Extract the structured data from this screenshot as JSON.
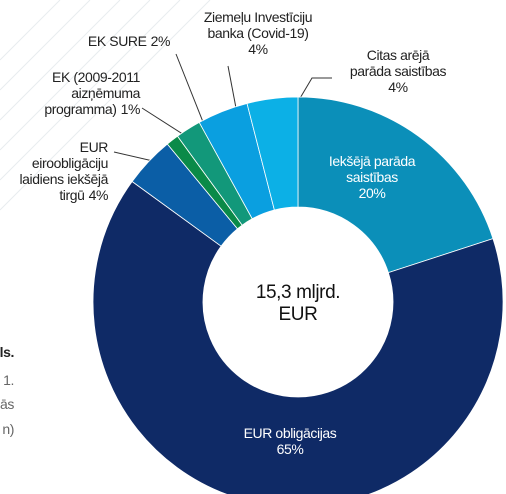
{
  "chart_data": {
    "type": "donut",
    "center_label": "15,3 mljrd.\nEUR",
    "categories": [
      "Iekšējā parāda\nsaistības",
      "EUR obligācijas",
      "EUR\neiroobligāciju\nlaidiens iekšējā\ntirgū",
      "EK (2009-2011\naizņēmuma\nprogramma)",
      "EK SURE",
      "Ziemeļu Investīciju\nbanka (Covid-19)",
      "Citas arējā\nparāda saistības"
    ],
    "values": [
      20,
      65,
      4,
      1,
      2,
      4,
      4
    ],
    "value_labels": [
      "20%",
      "65%",
      "4%",
      "1%",
      "2%",
      "4%",
      "4%"
    ],
    "colors": [
      "#0b8fb9",
      "#0f2a66",
      "#0b5ea6",
      "#0a8a48",
      "#12987a",
      "#0a9fe0",
      "#0cb0e6"
    ],
    "background_text": [
      "ls.",
      "1.",
      "ās",
      "n)"
    ]
  }
}
